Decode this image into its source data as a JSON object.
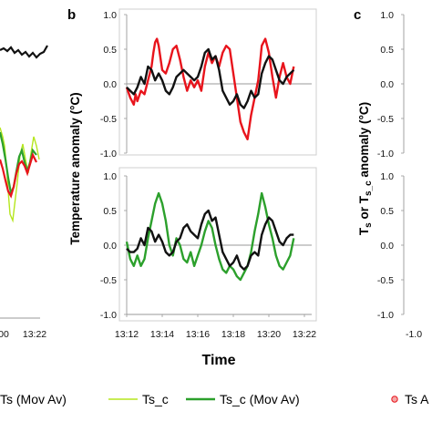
{
  "panels": {
    "b": "b",
    "c": "c"
  },
  "labels": {
    "xlabel": "Time",
    "ylabel_b": "Temperature anomaly (°C)",
    "ylabel_c": "Ts or Ts_c anomaly (°C)",
    "a_xticks": [
      "00",
      "13:22"
    ],
    "c_xtick": "-1.0"
  },
  "legend": {
    "items": [
      "Ts (Mov Av)",
      "Ts_c",
      "Ts_c (Mov Av)",
      "Ts A"
    ]
  },
  "colors": {
    "black": "#111111",
    "red": "#e8141c",
    "green": "#2ca02c",
    "lightgreen": "#b5e61d"
  },
  "chart_data": [
    {
      "type": "line",
      "panel": "b-top",
      "x_ticks": [
        "13:12",
        "13:14",
        "13:16",
        "13:18",
        "13:20",
        "13:22"
      ],
      "ylim": [
        -1.0,
        1.0
      ],
      "y_ticks": [
        "1.0",
        "0.5",
        "0.0",
        "-0.5",
        "-1.0"
      ],
      "series": [
        {
          "color": "red",
          "x": [
            0,
            0.2,
            0.4,
            0.5,
            0.6,
            0.8,
            1.0,
            1.2,
            1.4,
            1.5,
            1.6,
            1.7,
            1.8,
            2.0,
            2.2,
            2.4,
            2.6,
            2.8,
            3.0,
            3.2,
            3.4,
            3.6,
            3.8,
            4.0,
            4.2,
            4.4,
            4.6,
            4.8,
            5.0,
            5.2,
            5.4,
            5.6,
            5.8,
            6.0,
            6.2,
            6.4,
            6.6,
            6.8,
            7.0,
            7.2,
            7.4,
            7.5,
            7.6,
            7.8,
            8.0,
            8.2,
            8.4,
            8.6,
            8.8,
            9.0,
            9.2,
            9.4
          ],
          "y": [
            -0.05,
            -0.2,
            -0.3,
            -0.15,
            -0.25,
            -0.1,
            -0.15,
            0.05,
            0.25,
            0.45,
            0.6,
            0.65,
            0.55,
            0.2,
            0.15,
            0.3,
            0.5,
            0.55,
            0.35,
            0.1,
            -0.1,
            0.05,
            -0.05,
            0.05,
            -0.1,
            0.25,
            0.45,
            0.3,
            0.4,
            0.25,
            0.45,
            0.55,
            0.5,
            0.15,
            -0.2,
            -0.55,
            -0.7,
            -0.8,
            -0.45,
            -0.2,
            0.05,
            0.3,
            0.55,
            0.65,
            0.45,
            0.1,
            -0.2,
            0.1,
            0.3,
            0.1,
            0.0,
            0.25
          ]
        },
        {
          "color": "black",
          "x": [
            0,
            0.2,
            0.4,
            0.6,
            0.8,
            1.0,
            1.2,
            1.4,
            1.6,
            1.8,
            2.0,
            2.2,
            2.4,
            2.6,
            2.8,
            3.0,
            3.2,
            3.4,
            3.6,
            3.8,
            4.0,
            4.2,
            4.4,
            4.6,
            4.8,
            5.0,
            5.2,
            5.4,
            5.6,
            5.8,
            6.0,
            6.2,
            6.4,
            6.6,
            6.8,
            7.0,
            7.2,
            7.4,
            7.6,
            7.8,
            8.0,
            8.2,
            8.4,
            8.6,
            8.8,
            9.0,
            9.2,
            9.4
          ],
          "y": [
            -0.05,
            -0.1,
            -0.15,
            -0.05,
            0.1,
            0.0,
            0.25,
            0.2,
            0.05,
            0.15,
            0.05,
            -0.1,
            -0.15,
            -0.05,
            0.1,
            0.15,
            0.2,
            0.15,
            0.1,
            0.05,
            0.1,
            0.25,
            0.45,
            0.5,
            0.35,
            0.4,
            0.2,
            -0.1,
            -0.2,
            -0.3,
            -0.25,
            -0.15,
            -0.3,
            -0.35,
            -0.25,
            -0.1,
            -0.2,
            -0.15,
            0.15,
            0.3,
            0.4,
            0.35,
            0.2,
            0.05,
            0.0,
            0.1,
            0.15,
            0.2
          ]
        }
      ]
    },
    {
      "type": "line",
      "panel": "b-bottom",
      "x_ticks": [
        "13:12",
        "13:14",
        "13:16",
        "13:18",
        "13:20",
        "13:22"
      ],
      "ylim": [
        -1.0,
        1.0
      ],
      "y_ticks": [
        "1.0",
        "0.5",
        "0.0",
        "-0.5",
        "-1.0"
      ],
      "series": [
        {
          "color": "green",
          "x": [
            0,
            0.2,
            0.4,
            0.6,
            0.8,
            1.0,
            1.2,
            1.4,
            1.6,
            1.8,
            2.0,
            2.2,
            2.4,
            2.6,
            2.8,
            3.0,
            3.2,
            3.4,
            3.6,
            3.8,
            4.0,
            4.2,
            4.4,
            4.6,
            4.8,
            5.0,
            5.2,
            5.4,
            5.6,
            5.8,
            6.0,
            6.2,
            6.4,
            6.6,
            6.8,
            7.0,
            7.2,
            7.4,
            7.6,
            7.8,
            8.0,
            8.2,
            8.4,
            8.6,
            8.8,
            9.0,
            9.2,
            9.4
          ],
          "y": [
            0.05,
            -0.2,
            -0.3,
            -0.15,
            -0.3,
            -0.2,
            0.1,
            0.35,
            0.6,
            0.75,
            0.6,
            0.35,
            0.0,
            -0.15,
            0.1,
            0.0,
            -0.2,
            -0.25,
            -0.1,
            -0.3,
            -0.15,
            0.0,
            0.2,
            0.35,
            0.25,
            0.0,
            -0.2,
            -0.35,
            -0.4,
            -0.3,
            -0.35,
            -0.45,
            -0.5,
            -0.4,
            -0.3,
            -0.1,
            0.2,
            0.45,
            0.75,
            0.55,
            0.3,
            0.1,
            -0.15,
            -0.3,
            -0.35,
            -0.25,
            -0.15,
            0.1
          ]
        },
        {
          "color": "black",
          "x": [
            0,
            0.2,
            0.4,
            0.6,
            0.8,
            1.0,
            1.2,
            1.4,
            1.6,
            1.8,
            2.0,
            2.2,
            2.4,
            2.6,
            2.8,
            3.0,
            3.2,
            3.4,
            3.6,
            3.8,
            4.0,
            4.2,
            4.4,
            4.6,
            4.8,
            5.0,
            5.2,
            5.4,
            5.6,
            5.8,
            6.0,
            6.2,
            6.4,
            6.6,
            6.8,
            7.0,
            7.2,
            7.4,
            7.6,
            7.8,
            8.0,
            8.2,
            8.4,
            8.6,
            8.8,
            9.0,
            9.2,
            9.4
          ],
          "y": [
            -0.05,
            -0.1,
            -0.1,
            -0.05,
            0.1,
            0.0,
            0.25,
            0.2,
            0.05,
            0.15,
            0.05,
            -0.1,
            -0.15,
            -0.1,
            0.05,
            0.1,
            0.25,
            0.3,
            0.2,
            0.15,
            0.1,
            0.3,
            0.45,
            0.5,
            0.35,
            0.4,
            0.15,
            -0.1,
            -0.2,
            -0.3,
            -0.25,
            -0.15,
            -0.3,
            -0.35,
            -0.3,
            -0.15,
            -0.1,
            -0.15,
            0.15,
            0.3,
            0.4,
            0.35,
            0.2,
            0.05,
            0.0,
            0.1,
            0.15,
            0.15
          ]
        }
      ]
    }
  ]
}
